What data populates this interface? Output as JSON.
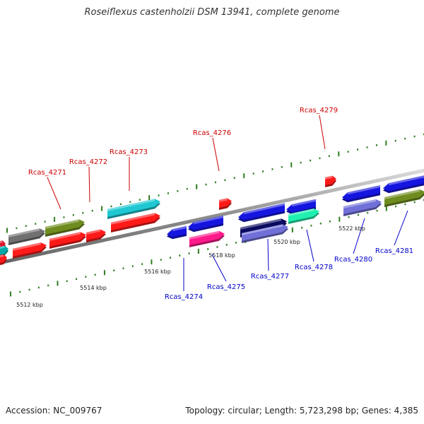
{
  "title": "Roseiflexus castenholzii DSM 13941, complete genome",
  "footer": {
    "accession": "Accession: NC_009767",
    "summary": "Topology: circular; Length: 5,723,298 bp; Genes: 4,385"
  },
  "colors": {
    "backbone": "#888888",
    "tick": "#2e7d1f",
    "top_label": "#cc0000",
    "bottom_label": "#0000cc"
  },
  "axis_labels": [
    {
      "text": "5512 kbp",
      "kbp": 5512
    },
    {
      "text": "5514 kbp",
      "kbp": 5514
    },
    {
      "text": "5516 kbp",
      "kbp": 5516
    },
    {
      "text": "5518 kbp",
      "kbp": 5518
    },
    {
      "text": "5520 kbp",
      "kbp": 5520
    },
    {
      "text": "5522 kbp",
      "kbp": 5522
    }
  ],
  "gene_labels_top": [
    {
      "text": "Rcas_4271",
      "color": "#cc0000"
    },
    {
      "text": "Rcas_4272",
      "color": "#cc0000"
    },
    {
      "text": "Rcas_4273",
      "color": "#cc0000"
    },
    {
      "text": "Rcas_4276",
      "color": "#cc0000"
    },
    {
      "text": "Rcas_4279",
      "color": "#cc0000"
    }
  ],
  "gene_labels_bottom": [
    {
      "text": "Rcas_4274",
      "color": "#0000cc"
    },
    {
      "text": "Rcas_4275",
      "color": "#0000cc"
    },
    {
      "text": "Rcas_4277",
      "color": "#0000cc"
    },
    {
      "text": "Rcas_4278",
      "color": "#0000cc"
    },
    {
      "text": "Rcas_4280",
      "color": "#0000cc"
    },
    {
      "text": "Rcas_4281",
      "color": "#0000cc"
    }
  ],
  "genes": [
    {
      "color": "#e0162b"
    },
    {
      "color": "#00aaaa"
    },
    {
      "color": "#707070"
    },
    {
      "color": "#6f8c1f"
    },
    {
      "color": "#ff1a1a"
    },
    {
      "color": "#ff1a1a"
    },
    {
      "color": "#ff1a1a"
    },
    {
      "color": "#ff1a1a"
    },
    {
      "color": "#1fc8d2"
    },
    {
      "color": "#ff1a1a"
    },
    {
      "color": "#ff1a1a"
    },
    {
      "color": "#ff1a1a"
    },
    {
      "color": "#1515e0"
    },
    {
      "color": "#1515e0"
    },
    {
      "color": "#ff1a8c"
    },
    {
      "color": "#1515e0"
    },
    {
      "color": "#1515e0"
    },
    {
      "color": "#0a0a60"
    },
    {
      "color": "#7070d8"
    },
    {
      "color": "#20f0b0"
    },
    {
      "color": "#1515e0"
    },
    {
      "color": "#1515e0"
    },
    {
      "color": "#7070d8"
    },
    {
      "color": "#6f8c1f"
    }
  ]
}
